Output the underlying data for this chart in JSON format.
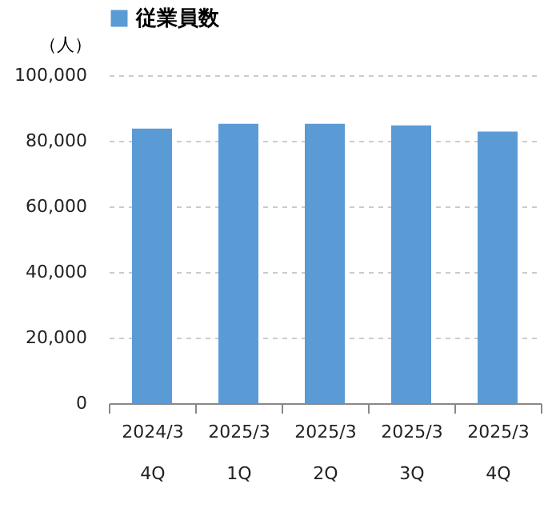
{
  "chart_data": {
    "type": "bar",
    "ylabel": "（人）",
    "categories": [
      "2024/3\n4Q",
      "2025/3\n1Q",
      "2025/3\n2Q",
      "2025/3\n3Q",
      "2025/3\n4Q"
    ],
    "series": [
      {
        "name": "従業員数",
        "color": "#5b9bd5",
        "values": [
          83700,
          85200,
          85200,
          84700,
          82800
        ]
      }
    ],
    "ylim": [
      0,
      100000
    ],
    "yticks": [
      0,
      {
        "value": 20000,
        "label": "20,000"
      },
      {
        "value": 40000,
        "label": "40,000"
      },
      {
        "value": 60000,
        "label": "60,000"
      },
      {
        "value": 80000,
        "label": "80,000"
      },
      {
        "value": 100000,
        "label": "100,000"
      }
    ],
    "grid": "y",
    "legend": "top"
  }
}
